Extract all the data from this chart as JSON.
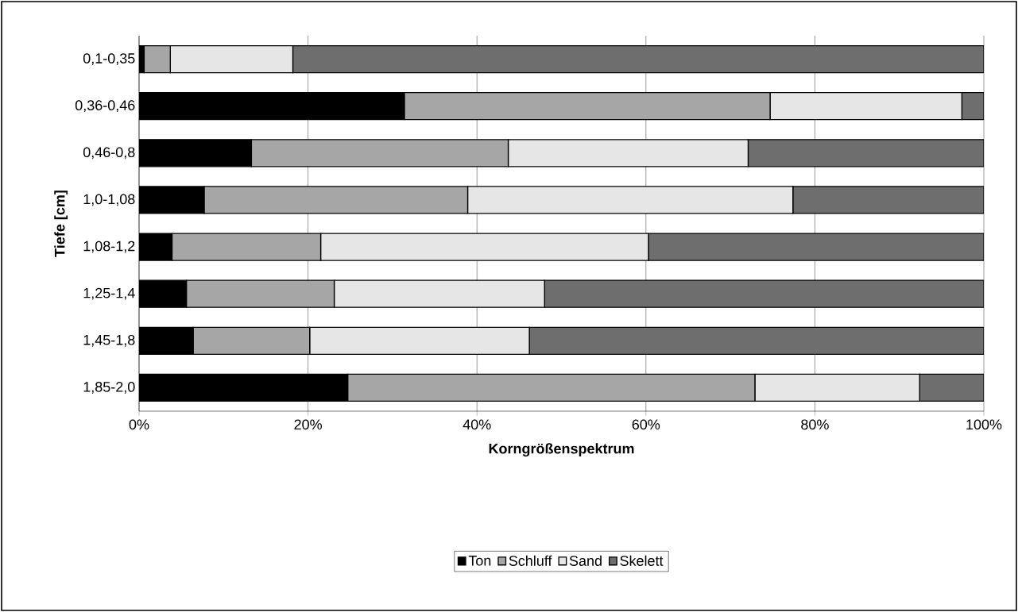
{
  "chart_data": {
    "type": "bar",
    "orientation": "horizontal",
    "stacked": true,
    "xlabel": "Korngrößenspektrum",
    "ylabel": "Tiefe [cm]",
    "categories": [
      "0,1-0,35",
      "0,36-0,46",
      "0,46-0,8",
      "1,0-1,08",
      "1,08-1,2",
      "1,25-1,4",
      "1,45-1,8",
      "1,85-2,0"
    ],
    "series": [
      {
        "name": "Ton",
        "color": "#000000",
        "values": [
          0.6,
          31.4,
          13.3,
          7.7,
          3.9,
          5.6,
          6.4,
          24.7
        ]
      },
      {
        "name": "Schluff",
        "color": "#a6a6a6",
        "values": [
          3.1,
          43.3,
          30.4,
          31.2,
          17.6,
          17.5,
          13.8,
          48.2
        ]
      },
      {
        "name": "Sand",
        "color": "#e6e6e6",
        "values": [
          14.5,
          22.7,
          28.4,
          38.5,
          38.8,
          24.9,
          26.0,
          19.5
        ]
      },
      {
        "name": "Skelett",
        "color": "#6e6e6e",
        "values": [
          81.8,
          2.6,
          27.9,
          22.6,
          39.7,
          52.0,
          53.8,
          7.6
        ]
      }
    ],
    "xlim": [
      0,
      100
    ],
    "xticks": [
      {
        "value": 0,
        "label": "0%"
      },
      {
        "value": 20,
        "label": "20%"
      },
      {
        "value": 40,
        "label": "40%"
      },
      {
        "value": 60,
        "label": "60%"
      },
      {
        "value": 80,
        "label": "80%"
      },
      {
        "value": 100,
        "label": "100%"
      }
    ],
    "grid": "x",
    "legend": "bottom"
  }
}
